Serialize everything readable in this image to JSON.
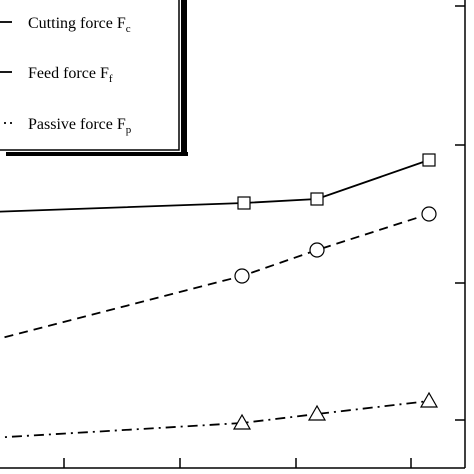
{
  "chart_data": {
    "type": "line",
    "x": [
      0,
      244,
      317,
      429
    ],
    "series": [
      {
        "name": "Cutting force",
        "subscript": "c",
        "marker": "square",
        "dash": "solid",
        "points": [
          [
            -10,
            212
          ],
          [
            244,
            203
          ],
          [
            317,
            199
          ],
          [
            429,
            160
          ]
        ]
      },
      {
        "name": "Feed force",
        "subscript": "f",
        "marker": "circle",
        "dash": "dashed",
        "points": [
          [
            -10,
            341
          ],
          [
            242,
            276
          ],
          [
            317,
            250
          ],
          [
            429,
            214
          ]
        ]
      },
      {
        "name": "Passive force",
        "subscript": "p",
        "marker": "triangle",
        "dash": "dashdot",
        "points": [
          [
            -10,
            438
          ],
          [
            242,
            423
          ],
          [
            317,
            414
          ],
          [
            429,
            401
          ]
        ]
      }
    ],
    "legend_position": "top-left",
    "grid": false,
    "colors": {
      "line": "#000000",
      "background": "#ffffff"
    }
  }
}
